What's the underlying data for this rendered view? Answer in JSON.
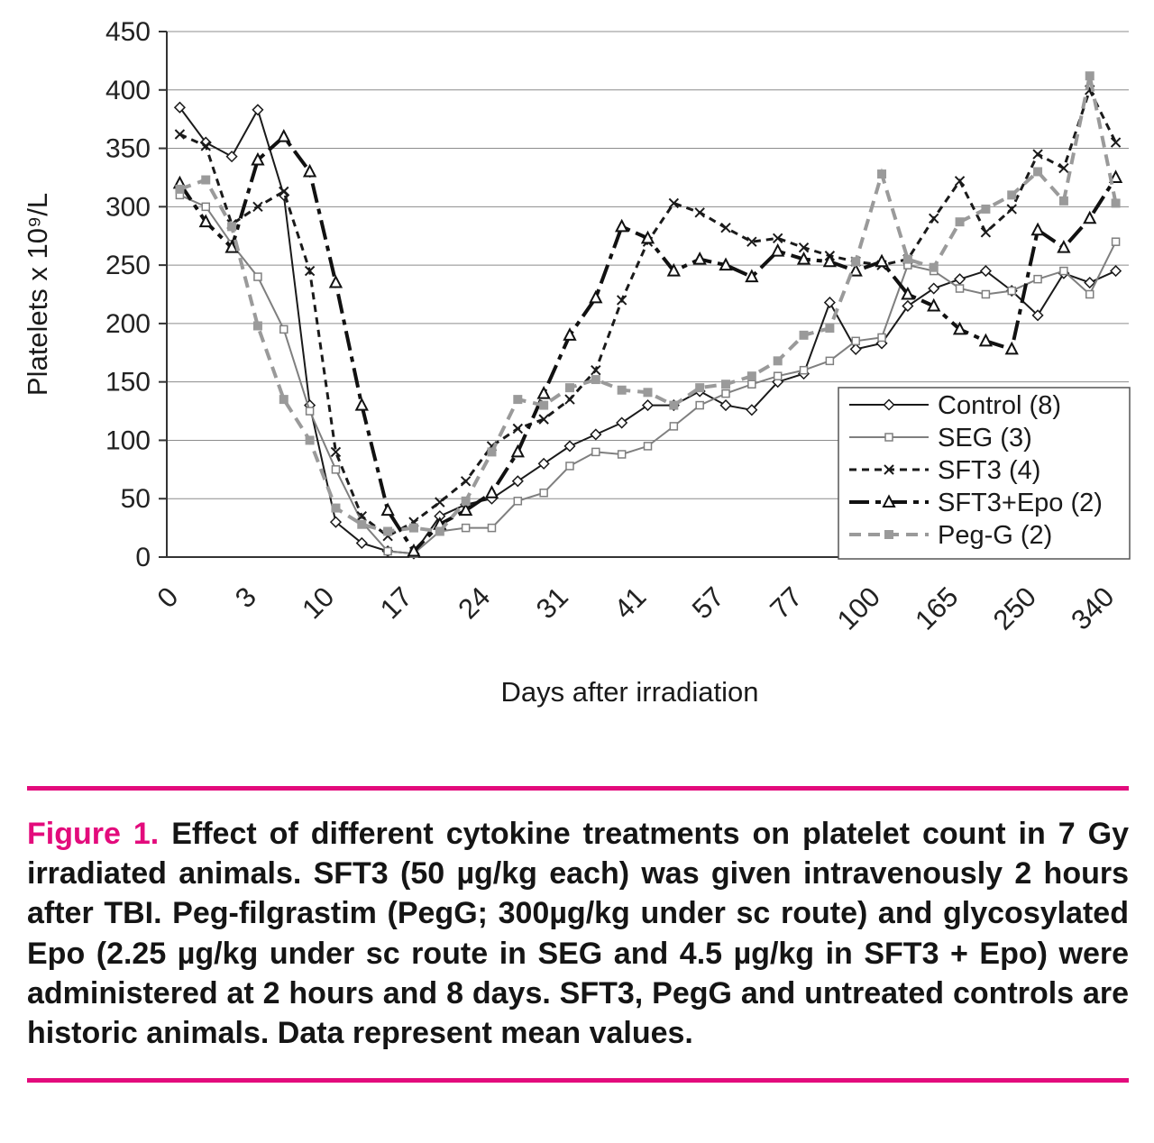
{
  "chart_data": {
    "type": "line",
    "title": "",
    "xlabel": "Days after irradiation",
    "ylabel": "Platelets x 10⁹/L",
    "ylim": [
      0,
      450
    ],
    "ytick_step": 50,
    "grid": true,
    "legend_position": "inside-right-bottom",
    "x_tick_labels": [
      "0",
      "3",
      "10",
      "17",
      "24",
      "31",
      "41",
      "57",
      "77",
      "100",
      "165",
      "250",
      "340"
    ],
    "x_label_step": 3,
    "n_points": 37,
    "series": [
      {
        "name": "Control (8)",
        "color": "#1a1a1a",
        "width": 2,
        "dash": "",
        "marker": "diamond",
        "values": [
          385,
          355,
          343,
          383,
          310,
          130,
          30,
          12,
          5,
          3,
          35,
          45,
          50,
          65,
          80,
          95,
          105,
          115,
          130,
          130,
          142,
          130,
          126,
          150,
          157,
          218,
          178,
          183,
          215,
          230,
          238,
          245,
          228,
          207,
          243,
          235,
          245
        ]
      },
      {
        "name": "SEG (3)",
        "color": "#7f7f7f",
        "width": 2,
        "dash": "",
        "marker": "square",
        "values": [
          310,
          300,
          268,
          240,
          195,
          125,
          75,
          30,
          5,
          3,
          22,
          25,
          25,
          48,
          55,
          78,
          90,
          88,
          95,
          112,
          130,
          140,
          148,
          155,
          160,
          168,
          185,
          188,
          250,
          245,
          230,
          225,
          228,
          238,
          245,
          225,
          270
        ]
      },
      {
        "name": "SFT3 (4)",
        "color": "#1a1a1a",
        "width": 3,
        "dash": "8 6",
        "marker": "x",
        "values": [
          362,
          352,
          285,
          300,
          313,
          245,
          90,
          35,
          18,
          30,
          47,
          65,
          95,
          110,
          118,
          135,
          160,
          220,
          270,
          303,
          295,
          282,
          270,
          273,
          265,
          258,
          253,
          250,
          255,
          290,
          322,
          278,
          298,
          345,
          333,
          400,
          355
        ]
      },
      {
        "name": "SFT3+Epo (2)",
        "color": "#111111",
        "width": 4,
        "dash": "22 7 6 7",
        "marker": "triangle",
        "values": [
          320,
          287,
          265,
          340,
          360,
          330,
          235,
          130,
          40,
          5,
          28,
          40,
          55,
          90,
          140,
          190,
          222,
          283,
          273,
          245,
          255,
          250,
          240,
          262,
          255,
          253,
          245,
          253,
          225,
          215,
          195,
          185,
          178,
          280,
          265,
          290,
          325
        ]
      },
      {
        "name": "Peg-G (2)",
        "color": "#9a9a9a",
        "width": 4,
        "dash": "13 8",
        "marker": "square-filled",
        "values": [
          315,
          323,
          283,
          198,
          135,
          100,
          42,
          28,
          22,
          25,
          22,
          48,
          90,
          135,
          130,
          145,
          152,
          143,
          141,
          130,
          145,
          148,
          155,
          168,
          190,
          196,
          253,
          328,
          255,
          248,
          287,
          298,
          310,
          330,
          305,
          412,
          303
        ]
      }
    ]
  },
  "caption": {
    "label": "Figure 1.",
    "text": "Effect of different cytokine treatments on platelet count in 7 Gy irradiated animals. SFT3 (50 µg/kg each) was given intravenously 2 hours after TBI. Peg-filgrastim (PegG; 300µg/kg under sc route) and glycosylated Epo (2.25 µg/kg under sc route in SEG and 4.5 µg/kg in SFT3 + Epo) were administered at 2 hours and 8 days. SFT3, PegG and untreated controls are historic animals. Data represent mean values.",
    "accent_color": "#E30B7C"
  }
}
